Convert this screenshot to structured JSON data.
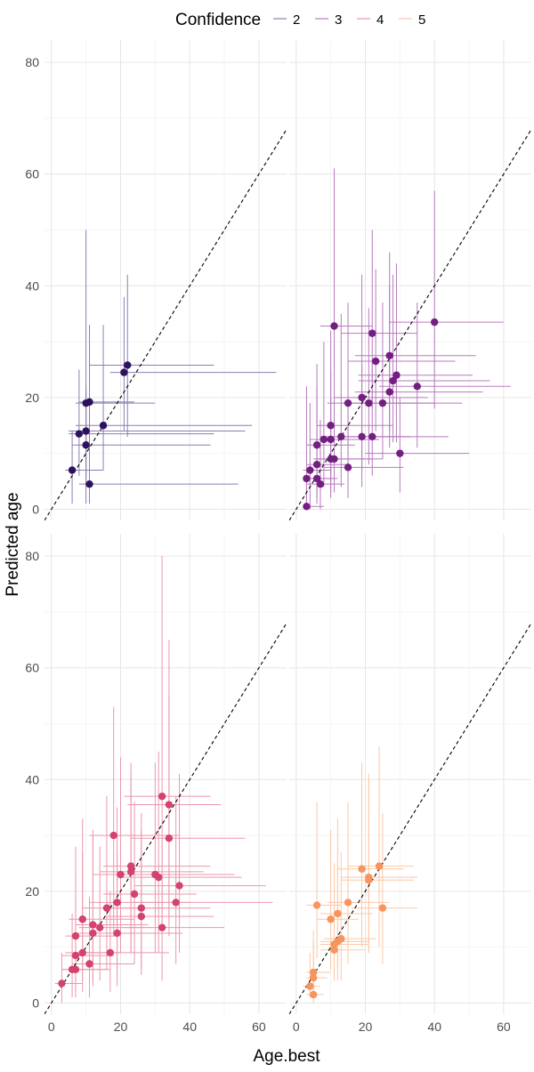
{
  "chart_data": {
    "type": "scatter",
    "title": "",
    "xlabel": "Age.best",
    "ylabel": "Predicted age",
    "xlim": [
      -2,
      68
    ],
    "ylim": [
      -2,
      84
    ],
    "x_ticks": [
      0,
      20,
      40,
      60
    ],
    "y_ticks": [
      0,
      20,
      40,
      60,
      80
    ],
    "grid": true,
    "legend": {
      "title": "Confidence",
      "placement": "top",
      "entries": [
        "2",
        "3",
        "4",
        "5"
      ]
    },
    "reference_line": {
      "style": "dashed",
      "label": "",
      "slope": 1,
      "intercept": 0
    },
    "colors": {
      "2": "#2c115f",
      "3": "#721f81",
      "4": "#d3436e",
      "5": "#f8945e",
      "errorbar_2": "#8c7fb3",
      "errorbar_3": "#b77bbd",
      "errorbar_4": "#eb98ad",
      "errorbar_5": "#fbc8a6"
    },
    "panels": [
      {
        "confidence": "2",
        "points": [
          {
            "x": 6,
            "y": 7,
            "xmin": 4,
            "xmax": 15,
            "ymin": 1,
            "ymax": 14
          },
          {
            "x": 8,
            "y": 13.5,
            "xmin": 5,
            "xmax": 47,
            "ymin": 6,
            "ymax": 25
          },
          {
            "x": 10,
            "y": 14,
            "xmin": 5,
            "xmax": 56,
            "ymin": 6,
            "ymax": 22
          },
          {
            "x": 10,
            "y": 11.5,
            "xmin": 6,
            "xmax": 46,
            "ymin": 5,
            "ymax": 21
          },
          {
            "x": 10,
            "y": 19,
            "xmin": 7,
            "xmax": 30,
            "ymin": 1,
            "ymax": 50
          },
          {
            "x": 11,
            "y": 19.2,
            "xmin": 8,
            "xmax": 24,
            "ymin": 12,
            "ymax": 33
          },
          {
            "x": 11,
            "y": 4.5,
            "xmin": 8,
            "xmax": 54,
            "ymin": 1,
            "ymax": 18
          },
          {
            "x": 15,
            "y": 15,
            "xmin": 7,
            "xmax": 58,
            "ymin": 7,
            "ymax": 33
          },
          {
            "x": 21,
            "y": 24.5,
            "xmin": 17,
            "xmax": 65,
            "ymin": 14,
            "ymax": 38
          },
          {
            "x": 22,
            "y": 25.8,
            "xmin": 11,
            "xmax": 47,
            "ymin": 13,
            "ymax": 42
          }
        ]
      },
      {
        "confidence": "3",
        "points": [
          {
            "x": 3,
            "y": 0.5,
            "xmin": 2,
            "xmax": 8,
            "ymin": 0,
            "ymax": 4
          },
          {
            "x": 3,
            "y": 5.5,
            "xmin": 2,
            "xmax": 10,
            "ymin": 0,
            "ymax": 22
          },
          {
            "x": 4,
            "y": 7,
            "xmin": 2,
            "xmax": 10,
            "ymin": 0,
            "ymax": 19
          },
          {
            "x": 6,
            "y": 5.5,
            "xmin": 3,
            "xmax": 12,
            "ymin": 1,
            "ymax": 20
          },
          {
            "x": 6,
            "y": 8,
            "xmin": 3,
            "xmax": 15,
            "ymin": 2,
            "ymax": 22
          },
          {
            "x": 6,
            "y": 11.5,
            "xmin": 3,
            "xmax": 17,
            "ymin": 3,
            "ymax": 26
          },
          {
            "x": 7,
            "y": 4.5,
            "xmin": 3,
            "xmax": 14,
            "ymin": 0,
            "ymax": 16
          },
          {
            "x": 8,
            "y": 12.5,
            "xmin": 4,
            "xmax": 21,
            "ymin": 4,
            "ymax": 30
          },
          {
            "x": 10,
            "y": 12.5,
            "xmin": 5,
            "xmax": 24,
            "ymin": 3,
            "ymax": 25
          },
          {
            "x": 10,
            "y": 15,
            "xmin": 6,
            "xmax": 28,
            "ymin": 5,
            "ymax": 32
          },
          {
            "x": 10,
            "y": 9,
            "xmin": 5,
            "xmax": 22,
            "ymin": 2,
            "ymax": 20
          },
          {
            "x": 11,
            "y": 32.8,
            "xmin": 7,
            "xmax": 22,
            "ymin": 10,
            "ymax": 61
          },
          {
            "x": 11,
            "y": 9,
            "xmin": 6,
            "xmax": 25,
            "ymin": 3,
            "ymax": 22
          },
          {
            "x": 13,
            "y": 13,
            "xmin": 7,
            "xmax": 33,
            "ymin": 4,
            "ymax": 35
          },
          {
            "x": 15,
            "y": 7.5,
            "xmin": 8,
            "xmax": 31,
            "ymin": 2,
            "ymax": 19
          },
          {
            "x": 15,
            "y": 19,
            "xmin": 9,
            "xmax": 35,
            "ymin": 7,
            "ymax": 37
          },
          {
            "x": 19,
            "y": 20,
            "xmin": 11,
            "xmax": 38,
            "ymin": 7,
            "ymax": 42
          },
          {
            "x": 19,
            "y": 13,
            "xmin": 11,
            "xmax": 33,
            "ymin": 4,
            "ymax": 26
          },
          {
            "x": 21,
            "y": 19,
            "xmin": 13,
            "xmax": 40,
            "ymin": 8,
            "ymax": 36
          },
          {
            "x": 22,
            "y": 31.5,
            "xmin": 13,
            "xmax": 35,
            "ymin": 18,
            "ymax": 50
          },
          {
            "x": 22,
            "y": 13,
            "xmin": 13,
            "xmax": 44,
            "ymin": 6,
            "ymax": 27
          },
          {
            "x": 23,
            "y": 26.5,
            "xmin": 15,
            "xmax": 46,
            "ymin": 14,
            "ymax": 43
          },
          {
            "x": 25,
            "y": 19,
            "xmin": 15,
            "xmax": 48,
            "ymin": 9,
            "ymax": 37
          },
          {
            "x": 27,
            "y": 21,
            "xmin": 17,
            "xmax": 54,
            "ymin": 11,
            "ymax": 40
          },
          {
            "x": 27,
            "y": 27.5,
            "xmin": 17,
            "xmax": 52,
            "ymin": 14,
            "ymax": 46
          },
          {
            "x": 28,
            "y": 23,
            "xmin": 18,
            "xmax": 56,
            "ymin": 12,
            "ymax": 42
          },
          {
            "x": 29,
            "y": 24,
            "xmin": 18,
            "xmax": 51,
            "ymin": 12,
            "ymax": 44
          },
          {
            "x": 30,
            "y": 10,
            "xmin": 20,
            "xmax": 50,
            "ymin": 3,
            "ymax": 20
          },
          {
            "x": 35,
            "y": 22,
            "xmin": 24,
            "xmax": 62,
            "ymin": 11,
            "ymax": 37
          },
          {
            "x": 40,
            "y": 33.5,
            "xmin": 27,
            "xmax": 60,
            "ymin": 18,
            "ymax": 57
          }
        ]
      },
      {
        "confidence": "4",
        "points": [
          {
            "x": 3,
            "y": 3.5,
            "xmin": 1,
            "xmax": 9,
            "ymin": 0,
            "ymax": 9
          },
          {
            "x": 6,
            "y": 6,
            "xmin": 3,
            "xmax": 16,
            "ymin": 1,
            "ymax": 16
          },
          {
            "x": 7,
            "y": 8.5,
            "xmin": 3,
            "xmax": 18,
            "ymin": 2,
            "ymax": 23
          },
          {
            "x": 7,
            "y": 6,
            "xmin": 3,
            "xmax": 17,
            "ymin": 1,
            "ymax": 19
          },
          {
            "x": 7,
            "y": 12,
            "xmin": 4,
            "xmax": 19,
            "ymin": 3,
            "ymax": 28
          },
          {
            "x": 9,
            "y": 9,
            "xmin": 4,
            "xmax": 20,
            "ymin": 2,
            "ymax": 27
          },
          {
            "x": 9,
            "y": 15,
            "xmin": 5,
            "xmax": 24,
            "ymin": 4,
            "ymax": 33
          },
          {
            "x": 11,
            "y": 7,
            "xmin": 6,
            "xmax": 24,
            "ymin": 1,
            "ymax": 19
          },
          {
            "x": 12,
            "y": 12.5,
            "xmin": 7,
            "xmax": 26,
            "ymin": 3,
            "ymax": 31
          },
          {
            "x": 12,
            "y": 14,
            "xmin": 7,
            "xmax": 28,
            "ymin": 4,
            "ymax": 30
          },
          {
            "x": 14,
            "y": 13.5,
            "xmin": 8,
            "xmax": 29,
            "ymin": 4,
            "ymax": 28
          },
          {
            "x": 16,
            "y": 17,
            "xmin": 9,
            "xmax": 33,
            "ymin": 6,
            "ymax": 37
          },
          {
            "x": 17,
            "y": 9,
            "xmin": 9,
            "xmax": 34,
            "ymin": 2,
            "ymax": 20
          },
          {
            "x": 18,
            "y": 30,
            "xmin": 11,
            "xmax": 37,
            "ymin": 12,
            "ymax": 53
          },
          {
            "x": 19,
            "y": 12.5,
            "xmin": 11,
            "xmax": 38,
            "ymin": 3,
            "ymax": 27
          },
          {
            "x": 19,
            "y": 18,
            "xmin": 11,
            "xmax": 40,
            "ymin": 6,
            "ymax": 35
          },
          {
            "x": 20,
            "y": 23,
            "xmin": 12,
            "xmax": 42,
            "ymin": 9,
            "ymax": 44
          },
          {
            "x": 23,
            "y": 24.5,
            "xmin": 15,
            "xmax": 46,
            "ymin": 9,
            "ymax": 43
          },
          {
            "x": 23,
            "y": 23.5,
            "xmin": 14,
            "xmax": 44,
            "ymin": 9,
            "ymax": 41
          },
          {
            "x": 24,
            "y": 19.5,
            "xmin": 15,
            "xmax": 42,
            "ymin": 7,
            "ymax": 36
          },
          {
            "x": 26,
            "y": 17,
            "xmin": 16,
            "xmax": 46,
            "ymin": 6,
            "ymax": 34
          },
          {
            "x": 26,
            "y": 15.5,
            "xmin": 16,
            "xmax": 47,
            "ymin": 5,
            "ymax": 31
          },
          {
            "x": 30,
            "y": 23,
            "xmin": 19,
            "xmax": 53,
            "ymin": 9,
            "ymax": 43
          },
          {
            "x": 31,
            "y": 22.5,
            "xmin": 20,
            "xmax": 55,
            "ymin": 9,
            "ymax": 45
          },
          {
            "x": 32,
            "y": 37,
            "xmin": 21,
            "xmax": 46,
            "ymin": 14,
            "ymax": 80
          },
          {
            "x": 32,
            "y": 13.5,
            "xmin": 21,
            "xmax": 50,
            "ymin": 4,
            "ymax": 30
          },
          {
            "x": 34,
            "y": 29.5,
            "xmin": 23,
            "xmax": 56,
            "ymin": 12,
            "ymax": 55
          },
          {
            "x": 34,
            "y": 35.5,
            "xmin": 22,
            "xmax": 49,
            "ymin": 15,
            "ymax": 65
          },
          {
            "x": 36,
            "y": 18,
            "xmin": 24,
            "xmax": 64,
            "ymin": 7,
            "ymax": 37
          },
          {
            "x": 37,
            "y": 21,
            "xmin": 24,
            "xmax": 62,
            "ymin": 9,
            "ymax": 41
          }
        ]
      },
      {
        "confidence": "5",
        "points": [
          {
            "x": 4,
            "y": 3,
            "xmin": 2,
            "xmax": 7,
            "ymin": 1,
            "ymax": 9
          },
          {
            "x": 5,
            "y": 1.5,
            "xmin": 3,
            "xmax": 8,
            "ymin": 0,
            "ymax": 5
          },
          {
            "x": 5,
            "y": 4.5,
            "xmin": 3,
            "xmax": 9,
            "ymin": 1,
            "ymax": 11
          },
          {
            "x": 5,
            "y": 5.5,
            "xmin": 3,
            "xmax": 10,
            "ymin": 2,
            "ymax": 13
          },
          {
            "x": 6,
            "y": 17.5,
            "xmin": 3,
            "xmax": 13,
            "ymin": 8,
            "ymax": 36
          },
          {
            "x": 10,
            "y": 15,
            "xmin": 6,
            "xmax": 18,
            "ymin": 6,
            "ymax": 31
          },
          {
            "x": 11,
            "y": 9.5,
            "xmin": 7,
            "xmax": 20,
            "ymin": 4,
            "ymax": 24
          },
          {
            "x": 11,
            "y": 10.5,
            "xmin": 7,
            "xmax": 21,
            "ymin": 4,
            "ymax": 25
          },
          {
            "x": 12,
            "y": 16,
            "xmin": 7,
            "xmax": 22,
            "ymin": 6,
            "ymax": 33
          },
          {
            "x": 12,
            "y": 11,
            "xmin": 7,
            "xmax": 21,
            "ymin": 4,
            "ymax": 26
          },
          {
            "x": 13,
            "y": 11.5,
            "xmin": 8,
            "xmax": 23,
            "ymin": 4,
            "ymax": 27
          },
          {
            "x": 15,
            "y": 18,
            "xmin": 9,
            "xmax": 27,
            "ymin": 7,
            "ymax": 36
          },
          {
            "x": 19,
            "y": 24,
            "xmin": 12,
            "xmax": 31,
            "ymin": 10,
            "ymax": 43
          },
          {
            "x": 21,
            "y": 22.5,
            "xmin": 13,
            "xmax": 35,
            "ymin": 9,
            "ymax": 41
          },
          {
            "x": 21,
            "y": 22,
            "xmin": 13,
            "xmax": 34,
            "ymin": 9,
            "ymax": 40
          },
          {
            "x": 24,
            "y": 24.5,
            "xmin": 15,
            "xmax": 34,
            "ymin": 10,
            "ymax": 46
          },
          {
            "x": 25,
            "y": 17,
            "xmin": 16,
            "xmax": 35,
            "ymin": 7,
            "ymax": 34
          }
        ]
      }
    ]
  }
}
